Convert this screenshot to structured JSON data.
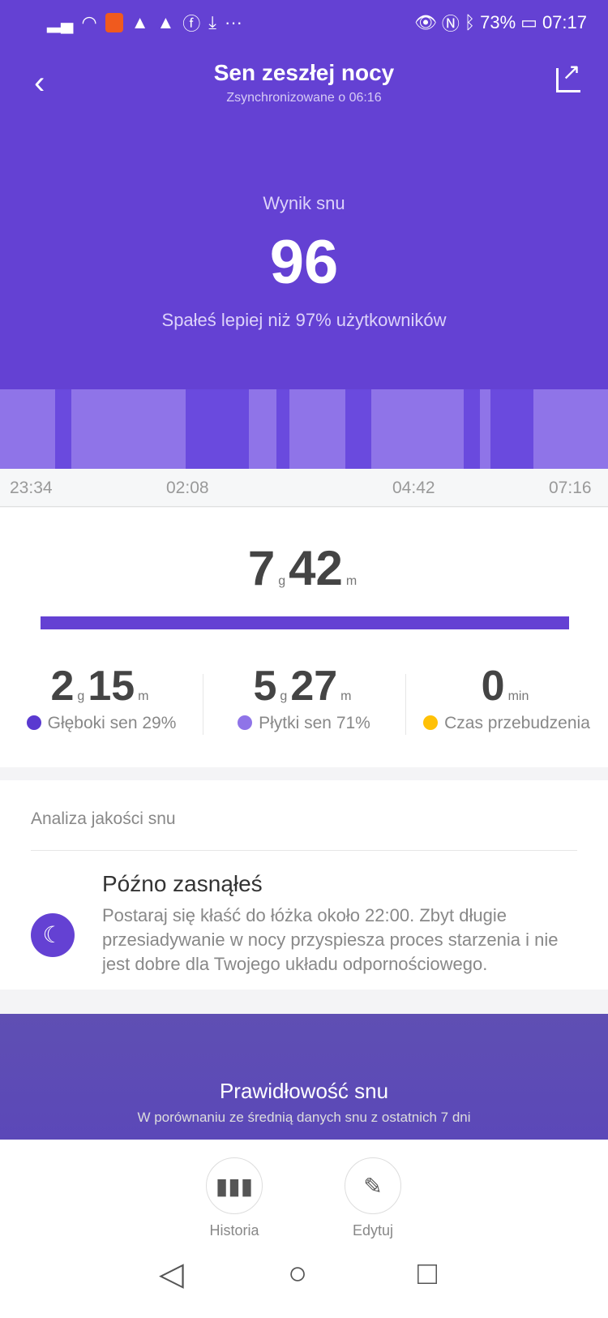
{
  "status_bar": {
    "battery": "73%",
    "time": "07:17",
    "left_icons": [
      "signal-icon",
      "wifi-icon",
      "app-icon",
      "navigation-icon",
      "navigation-icon",
      "facebook-icon",
      "download-icon",
      "more-icon"
    ],
    "right_icons": [
      "eye-icon",
      "nfc-icon",
      "bluetooth-icon",
      "battery-icon"
    ]
  },
  "header": {
    "title": "Sen zeszłej nocy",
    "subtitle": "Zsynchronizowane o 06:16"
  },
  "score": {
    "label": "Wynik snu",
    "value": "96",
    "comparison": "Spałeś lepiej niż 97% użytkowników"
  },
  "chart_data": {
    "type": "timeline",
    "x_ticks": [
      "23:34",
      "02:08",
      "04:42",
      "07:16"
    ],
    "start": "23:34",
    "end": "07:16",
    "segments": [
      [
        "light",
        0,
        0.09
      ],
      [
        "deep",
        0.09,
        0.117
      ],
      [
        "light",
        0.117,
        0.305
      ],
      [
        "deep",
        0.305,
        0.409
      ],
      [
        "light",
        0.409,
        0.455
      ],
      [
        "deep",
        0.455,
        0.476
      ],
      [
        "light",
        0.476,
        0.568
      ],
      [
        "deep",
        0.568,
        0.611
      ],
      [
        "light",
        0.611,
        0.763
      ],
      [
        "deep",
        0.763,
        0.789
      ],
      [
        "light",
        0.789,
        0.807
      ],
      [
        "deep",
        0.807,
        0.877
      ],
      [
        "light",
        0.877,
        1
      ]
    ],
    "colors": {
      "deep": "#6a4ade",
      "light": "#8f74e8"
    }
  },
  "summary": {
    "total_hours": "7",
    "total_minutes": "42",
    "hour_unit": "g",
    "minute_unit": "m",
    "stats": [
      {
        "h": "2",
        "m": "15",
        "label": "Głęboki sen 29%",
        "color": "#5a3ad0"
      },
      {
        "h": "5",
        "m": "27",
        "label": "Płytki sen 71%",
        "color": "#8f74e8"
      },
      {
        "value": "0",
        "unit": "min",
        "label": "Czas przebudzenia",
        "color": "#ffc107"
      }
    ]
  },
  "analysis": {
    "heading": "Analiza jakości snu",
    "title": "Późno zasnąłeś",
    "text": "Postaraj się kłaść do łóżka około 22:00. Zbyt długie przesiadywanie w nocy przyspiesza proces starzenia i nie jest dobre dla Twojego układu odpornościowego."
  },
  "regularity": {
    "title": "Prawidłowość snu",
    "subtitle": "W porównaniu ze średnią danych snu z ostatnich 7 dni"
  },
  "actions": [
    {
      "label": "Historia"
    },
    {
      "label": "Edytuj"
    }
  ]
}
